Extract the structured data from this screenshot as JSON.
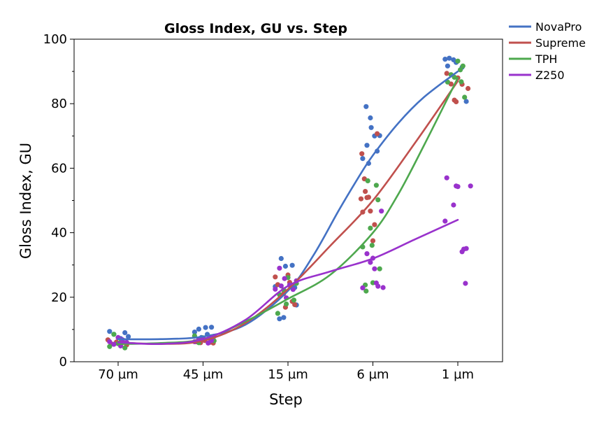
{
  "chart_data": {
    "type": "scatter",
    "title": "Gloss Index, GU vs. Step",
    "xlabel": "Step",
    "ylabel": "Gloss Index, GU",
    "categories": [
      "70 µm",
      "45 µm",
      "15 µm",
      "6 µm",
      "1 µm"
    ],
    "ylim": [
      0,
      100
    ],
    "yticks": [
      0,
      20,
      40,
      60,
      80,
      100
    ],
    "grid": false,
    "legend_position": "top-right",
    "series": [
      {
        "name": "NovaPro",
        "color": "#4472C4",
        "fit": [
          [
            0,
            7.0
          ],
          [
            0.5,
            7.0
          ],
          [
            1,
            7.8
          ],
          [
            1.5,
            11.5
          ],
          [
            2,
            22.0
          ],
          [
            2.3,
            33
          ],
          [
            2.6,
            47
          ],
          [
            2.85,
            58
          ],
          [
            3,
            64.0
          ],
          [
            3.3,
            74
          ],
          [
            3.6,
            82
          ],
          [
            4,
            90.0
          ]
        ],
        "points": [
          [
            -0.1,
            9.4
          ],
          [
            -0.05,
            8.5
          ],
          [
            0.03,
            7.2
          ],
          [
            0.08,
            9.0
          ],
          [
            0.12,
            7.8
          ],
          [
            0.0,
            5.8
          ],
          [
            0.05,
            6.8
          ],
          [
            0.9,
            9.2
          ],
          [
            0.95,
            10.1
          ],
          [
            1.03,
            10.6
          ],
          [
            1.1,
            10.7
          ],
          [
            1.05,
            8.5
          ],
          [
            0.98,
            7.5
          ],
          [
            1.85,
            23.3
          ],
          [
            1.92,
            32.0
          ],
          [
            1.97,
            29.6
          ],
          [
            2.05,
            29.9
          ],
          [
            1.95,
            13.7
          ],
          [
            1.9,
            13.3
          ],
          [
            2.08,
            23.0
          ],
          [
            2.1,
            17.6
          ],
          [
            2.88,
            63.0
          ],
          [
            2.92,
            79.1
          ],
          [
            2.93,
            67.1
          ],
          [
            2.95,
            61.5
          ],
          [
            2.97,
            75.6
          ],
          [
            2.98,
            72.6
          ],
          [
            3.02,
            70.0
          ],
          [
            3.05,
            65.3
          ],
          [
            3.08,
            70.1
          ],
          [
            3.85,
            93.8
          ],
          [
            3.9,
            94.1
          ],
          [
            3.95,
            93.6
          ],
          [
            3.98,
            92.8
          ],
          [
            4.05,
            91.3
          ],
          [
            4.1,
            80.7
          ],
          [
            3.88,
            91.7
          ]
        ]
      },
      {
        "name": "Supreme",
        "color": "#C0504D",
        "fit": [
          [
            0,
            6.0
          ],
          [
            0.5,
            5.5
          ],
          [
            1,
            6.5
          ],
          [
            1.5,
            12.0
          ],
          [
            2,
            22.5
          ],
          [
            2.5,
            36
          ],
          [
            3,
            50.0
          ],
          [
            3.5,
            68
          ],
          [
            4,
            87.0
          ]
        ],
        "points": [
          [
            -0.12,
            6.8
          ],
          [
            -0.08,
            5.5
          ],
          [
            -0.02,
            6.1
          ],
          [
            0.05,
            5.9
          ],
          [
            0.1,
            5.2
          ],
          [
            0.92,
            6.2
          ],
          [
            0.97,
            5.9
          ],
          [
            1.02,
            6.6
          ],
          [
            1.08,
            6.0
          ],
          [
            1.12,
            5.8
          ],
          [
            1.85,
            26.3
          ],
          [
            1.88,
            23.9
          ],
          [
            1.95,
            21.1
          ],
          [
            2.0,
            26.9
          ],
          [
            2.02,
            24.6
          ],
          [
            2.05,
            18.7
          ],
          [
            2.08,
            17.7
          ],
          [
            1.97,
            16.9
          ],
          [
            2.87,
            64.5
          ],
          [
            2.88,
            46.4
          ],
          [
            2.9,
            56.7
          ],
          [
            2.91,
            52.8
          ],
          [
            2.93,
            50.9
          ],
          [
            2.95,
            51.0
          ],
          [
            2.97,
            46.7
          ],
          [
            3.0,
            37.5
          ],
          [
            3.02,
            42.5
          ],
          [
            3.05,
            70.7
          ],
          [
            2.86,
            50.5
          ],
          [
            3.87,
            89.4
          ],
          [
            3.92,
            86.1
          ],
          [
            3.96,
            81.1
          ],
          [
            3.98,
            80.6
          ],
          [
            4.0,
            88.0
          ],
          [
            4.05,
            86.0
          ],
          [
            4.12,
            84.7
          ]
        ]
      },
      {
        "name": "TPH",
        "color": "#4EA84E",
        "fit": [
          [
            0,
            5.5
          ],
          [
            0.5,
            5.8
          ],
          [
            1,
            7.0
          ],
          [
            1.5,
            12.5
          ],
          [
            2,
            19.5
          ],
          [
            2.5,
            27
          ],
          [
            3,
            40.0
          ],
          [
            3.3,
            52
          ],
          [
            3.6,
            67
          ],
          [
            4,
            88.0
          ]
        ],
        "points": [
          [
            -0.1,
            4.7
          ],
          [
            -0.05,
            8.5
          ],
          [
            0.0,
            5.6
          ],
          [
            0.04,
            6.6
          ],
          [
            0.08,
            4.3
          ],
          [
            0.9,
            8.0
          ],
          [
            0.95,
            5.9
          ],
          [
            1.0,
            7.4
          ],
          [
            1.1,
            6.7
          ],
          [
            1.13,
            6.5
          ],
          [
            1.88,
            15.0
          ],
          [
            1.9,
            20.8
          ],
          [
            1.95,
            22.3
          ],
          [
            2.0,
            26.1
          ],
          [
            2.03,
            23.4
          ],
          [
            2.07,
            19.1
          ],
          [
            2.1,
            24.3
          ],
          [
            1.98,
            17.9
          ],
          [
            2.88,
            35.6
          ],
          [
            2.91,
            23.8
          ],
          [
            2.92,
            21.9
          ],
          [
            2.94,
            56.1
          ],
          [
            2.97,
            41.4
          ],
          [
            2.99,
            36.1
          ],
          [
            3.04,
            54.7
          ],
          [
            3.06,
            50.2
          ],
          [
            3.08,
            28.8
          ],
          [
            3.0,
            24.5
          ],
          [
            3.88,
            86.7
          ],
          [
            3.92,
            89.0
          ],
          [
            3.96,
            88.2
          ],
          [
            4.0,
            93.2
          ],
          [
            4.03,
            90.5
          ],
          [
            4.06,
            91.7
          ],
          [
            4.08,
            82.0
          ],
          [
            4.04,
            86.8
          ]
        ]
      },
      {
        "name": "Z250",
        "color": "#9932CC",
        "fit": [
          [
            0,
            6.0
          ],
          [
            0.5,
            5.5
          ],
          [
            1,
            7.0
          ],
          [
            1.5,
            13.0
          ],
          [
            2,
            23.5
          ],
          [
            2.5,
            28
          ],
          [
            3,
            32.0
          ],
          [
            3.5,
            38
          ],
          [
            4,
            44.0
          ]
        ],
        "points": [
          [
            -0.1,
            6.2
          ],
          [
            -0.05,
            5.4
          ],
          [
            0.0,
            7.5
          ],
          [
            0.05,
            6.8
          ],
          [
            0.1,
            6.0
          ],
          [
            0.03,
            4.9
          ],
          [
            0.9,
            6.2
          ],
          [
            0.95,
            7.0
          ],
          [
            1.0,
            6.9
          ],
          [
            1.06,
            5.8
          ],
          [
            1.1,
            6.6
          ],
          [
            1.13,
            7.9
          ],
          [
            1.85,
            22.5
          ],
          [
            1.9,
            29.0
          ],
          [
            1.92,
            23.5
          ],
          [
            1.96,
            25.8
          ],
          [
            2.02,
            23.8
          ],
          [
            2.06,
            22.4
          ],
          [
            2.1,
            25.1
          ],
          [
            1.98,
            19.8
          ],
          [
            2.88,
            22.9
          ],
          [
            2.93,
            33.5
          ],
          [
            2.97,
            30.8
          ],
          [
            3.0,
            32.1
          ],
          [
            3.02,
            28.8
          ],
          [
            3.04,
            24.4
          ],
          [
            3.06,
            23.4
          ],
          [
            3.1,
            46.7
          ],
          [
            3.12,
            23.0
          ],
          [
            3.85,
            43.6
          ],
          [
            3.87,
            57.0
          ],
          [
            3.95,
            48.6
          ],
          [
            3.98,
            54.5
          ],
          [
            4.0,
            54.3
          ],
          [
            4.05,
            34.1
          ],
          [
            4.07,
            34.9
          ],
          [
            4.09,
            24.3
          ],
          [
            4.1,
            35.1
          ],
          [
            4.15,
            54.5
          ]
        ]
      }
    ]
  }
}
